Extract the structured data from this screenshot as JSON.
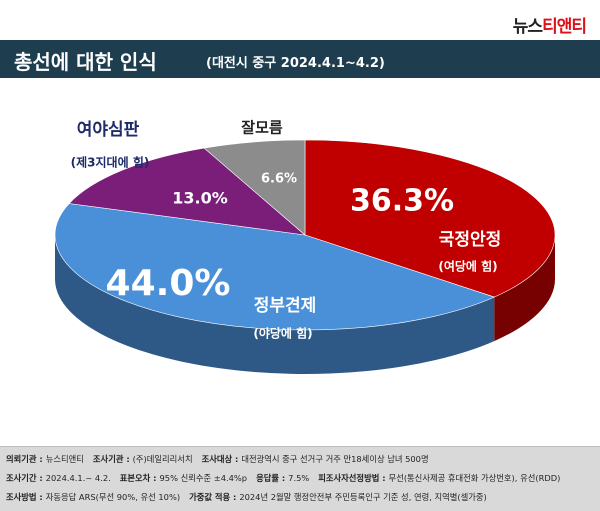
{
  "logo": {
    "part1": "뉴스",
    "part2": "티앤티"
  },
  "chart_data": {
    "type": "pie3d",
    "title": "총선에 대한 인식",
    "subtitle": "(대전시 중구 2024.4.1~4.2)",
    "categories": [
      "국정안정",
      "정부견제",
      "여야심판",
      "잘모름"
    ],
    "sublabels": [
      "(여당에 힘)",
      "(야당에 힘)",
      "(제3지대에 힘)",
      null
    ],
    "values": [
      36.3,
      44.0,
      13.0,
      6.6
    ],
    "value_labels": [
      "36.3%",
      "44.0%",
      "13.0%",
      "6.6%"
    ],
    "colors": [
      "#c00000",
      "#4a90d9",
      "#7a1e7a",
      "#8c8c8c"
    ]
  },
  "footer": [
    [
      {
        "label": "의뢰기관 :",
        "value": "뉴스티앤티"
      },
      {
        "label": "조사기관 :",
        "value": "(주)데일리리서치"
      },
      {
        "label": "조사대상 :",
        "value": "대전광역시 중구 선거구 거주 만18세이상 남녀 500명"
      }
    ],
    [
      {
        "label": "조사기간 :",
        "value": "2024.4.1.~ 4.2."
      },
      {
        "label": "표본오차 :",
        "value": "95% 신뢰수준 ±4.4%p"
      },
      {
        "label": "응답률 :",
        "value": "7.5%"
      },
      {
        "label": "피조사자선정방법 :",
        "value": "무선(통신사제공 휴대전화 가상번호), 유선(RDD)"
      }
    ],
    [
      {
        "label": "조사방법 :",
        "value": "자동응답 ARS(무선 90%, 유선 10%)"
      },
      {
        "label": "가중값 적용 :",
        "value": "2024년 2월말 행정안전부 주민등록인구 기준 성, 연령, 지역별(셀가중)"
      }
    ]
  ]
}
